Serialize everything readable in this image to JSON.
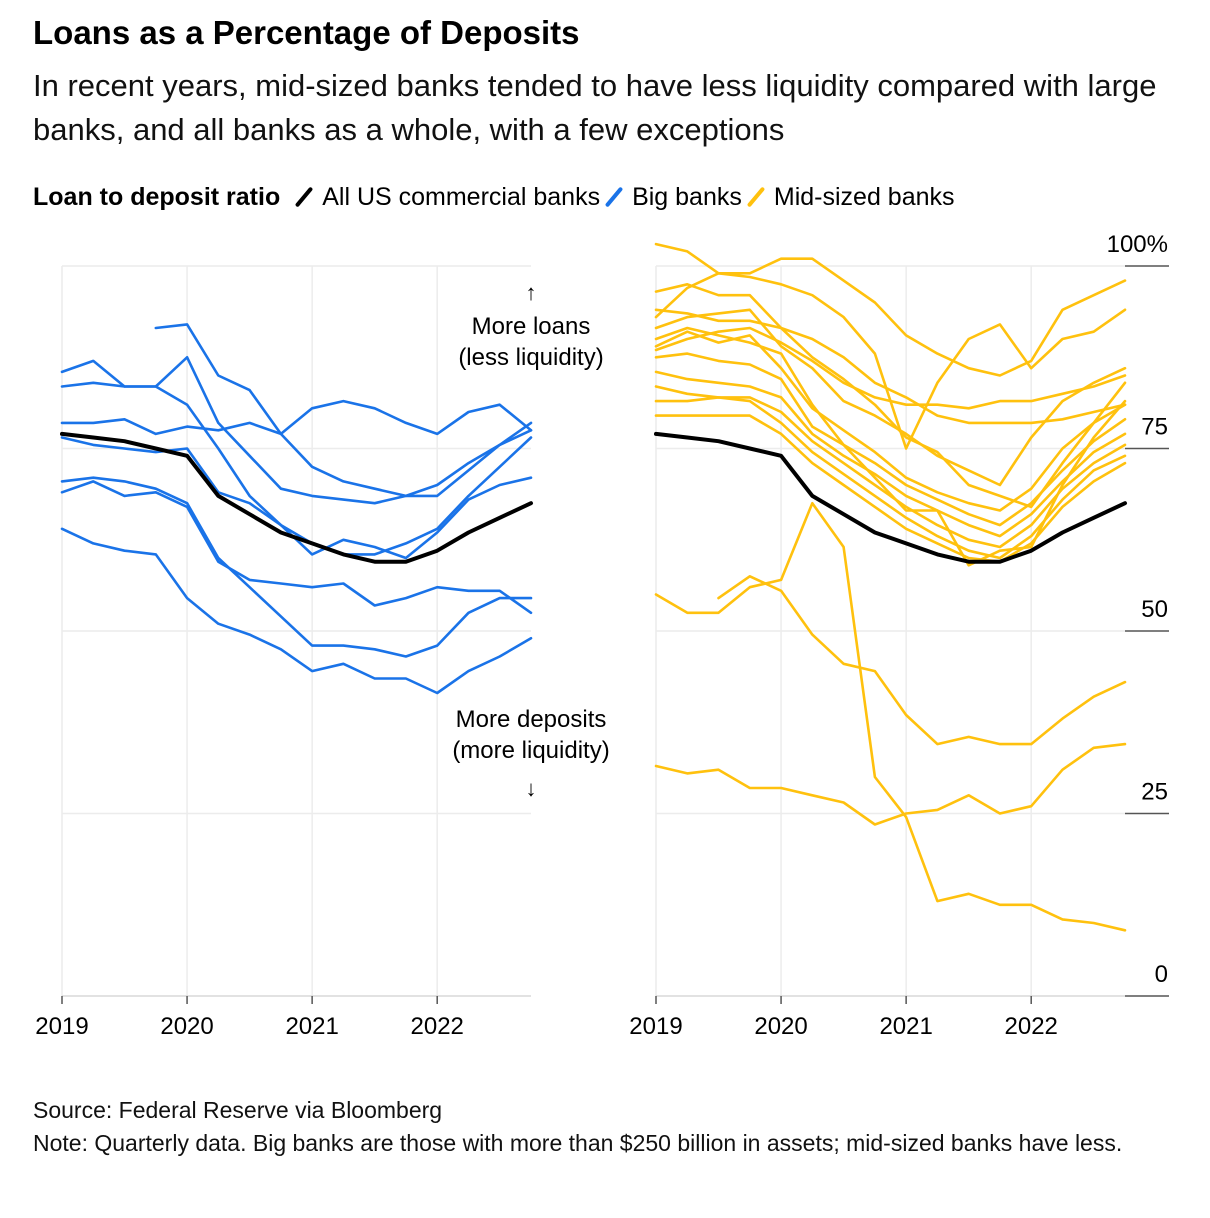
{
  "title": "Loans as a Percentage of Deposits",
  "subtitle": "In recent years, mid-sized banks tended to have less liquidity compared with large banks, and all banks as a whole, with a few exceptions",
  "legend": {
    "lead": "Loan to deposit ratio",
    "items": [
      {
        "label": "All US commercial banks",
        "color": "#000000"
      },
      {
        "label": "Big banks",
        "color": "#1a73e8"
      },
      {
        "label": "Mid-sized banks",
        "color": "#ffc10e"
      }
    ]
  },
  "annotations": {
    "up_arrow": "↑",
    "more_loans": "More loans",
    "less_liquidity": "(less liquidity)",
    "more_deposits": "More deposits",
    "more_liquidity": "(more liquidity)",
    "down_arrow": "↓"
  },
  "source": "Source: Federal Reserve via Bloomberg",
  "note": "Note: Quarterly data. Big banks are those with more than $250 billion in assets; mid-sized banks have less.",
  "chart_data": [
    {
      "type": "line",
      "title": "Big banks",
      "x": [
        2019.0,
        2019.25,
        2019.5,
        2019.75,
        2020.0,
        2020.25,
        2020.5,
        2020.75,
        2021.0,
        2021.25,
        2021.5,
        2021.75,
        2022.0,
        2022.25,
        2022.5,
        2022.75
      ],
      "xticks": [
        "2019",
        "2020",
        "2021",
        "2022"
      ],
      "ylim": [
        0,
        100
      ],
      "yticks": [
        "100%",
        "75",
        "50",
        "25",
        "0"
      ],
      "series": [
        {
          "name": "All US commercial banks",
          "color": "#000000",
          "values": [
            77,
            76.5,
            76,
            75,
            74,
            68.5,
            66,
            63.5,
            62,
            60.5,
            59.5,
            59.5,
            61,
            63.5,
            65.5,
            67.5
          ]
        },
        {
          "name": "Big bank 1",
          "color": "#1a73e8",
          "values": [
            null,
            null,
            null,
            91.5,
            92,
            85,
            83,
            77,
            72.5,
            70.5,
            69.5,
            68.5,
            68.5,
            72,
            75.5,
            78.5
          ]
        },
        {
          "name": "Big bank 2",
          "color": "#1a73e8",
          "values": [
            85.5,
            87,
            83.5,
            83.5,
            87.5,
            78.5,
            74,
            69.5,
            68.5,
            68,
            67.5,
            68.5,
            70,
            73,
            75.5,
            77.5
          ]
        },
        {
          "name": "Big bank 3",
          "color": "#1a73e8",
          "values": [
            83.5,
            84,
            83.5,
            83.5,
            81,
            75,
            68.5,
            64.5,
            60.5,
            62.5,
            61.5,
            60,
            63.5,
            68,
            70,
            71
          ]
        },
        {
          "name": "Big bank 4",
          "color": "#1a73e8",
          "values": [
            78.5,
            78.5,
            79,
            77,
            78,
            77.5,
            78.5,
            77,
            80.5,
            81.5,
            80.5,
            78.5,
            77,
            80,
            81,
            77.5
          ]
        },
        {
          "name": "Big bank 5",
          "color": "#1a73e8",
          "values": [
            76.5,
            75.5,
            75,
            74.5,
            75,
            69,
            67.5,
            64.5,
            62,
            60.5,
            60.5,
            62,
            64,
            68.5,
            72.5,
            76.5
          ]
        },
        {
          "name": "Big bank 6",
          "color": "#1a73e8",
          "values": [
            69,
            70.5,
            68.5,
            69,
            67,
            59.5,
            57,
            56.5,
            56,
            56.5,
            53.5,
            54.5,
            56,
            55.5,
            55.5,
            52.5
          ]
        },
        {
          "name": "Big bank 7",
          "color": "#1a73e8",
          "values": [
            70.5,
            71,
            70.5,
            69.5,
            67.5,
            60,
            56,
            52,
            48,
            48,
            47.5,
            46.5,
            48,
            52.5,
            54.5,
            54.5
          ]
        },
        {
          "name": "Big bank 8",
          "color": "#1a73e8",
          "values": [
            64,
            62,
            61,
            60.5,
            54.5,
            51,
            49.5,
            47.5,
            44.5,
            45.5,
            43.5,
            43.5,
            41.5,
            44.5,
            46.5,
            49
          ]
        }
      ]
    },
    {
      "type": "line",
      "title": "Mid-sized banks",
      "x": [
        2019.0,
        2019.25,
        2019.5,
        2019.75,
        2020.0,
        2020.25,
        2020.5,
        2020.75,
        2021.0,
        2021.25,
        2021.5,
        2021.75,
        2022.0,
        2022.25,
        2022.5,
        2022.75
      ],
      "xticks": [
        "2019",
        "2020",
        "2021",
        "2022"
      ],
      "ylim": [
        0,
        100
      ],
      "yticks": [
        "100%",
        "75",
        "50",
        "25",
        "0"
      ],
      "series": [
        {
          "name": "All US commercial banks",
          "color": "#000000",
          "values": [
            77,
            76.5,
            76,
            75,
            74,
            68.5,
            66,
            63.5,
            62,
            60.5,
            59.5,
            59.5,
            61,
            63.5,
            65.5,
            67.5
          ]
        },
        {
          "name": "Mid-sized bank 1",
          "color": "#ffc10e",
          "values": [
            103,
            102,
            99,
            99,
            101,
            101,
            98,
            95,
            90.5,
            88,
            86,
            85,
            87,
            94,
            96,
            98
          ]
        },
        {
          "name": "Mid-sized bank 2",
          "color": "#ffc10e",
          "values": [
            93,
            97,
            99,
            98.5,
            97.5,
            96,
            93,
            88,
            75,
            84,
            90,
            92,
            86,
            90,
            91,
            94
          ]
        },
        {
          "name": "Mid-sized bank 3",
          "color": "#ffc10e",
          "values": [
            91.5,
            93,
            93.5,
            94,
            89,
            86,
            81.5,
            79.5,
            77,
            74,
            72,
            70,
            76.5,
            81.5,
            84,
            86
          ]
        },
        {
          "name": "Mid-sized bank 4",
          "color": "#ffc10e",
          "values": [
            89,
            91,
            89.5,
            90.5,
            86,
            80.5,
            77.5,
            74.5,
            71,
            69,
            67.5,
            66.5,
            69.5,
            75,
            78.5,
            81
          ]
        },
        {
          "name": "Mid-sized bank 5",
          "color": "#ffc10e",
          "values": [
            87.5,
            88,
            87,
            86.5,
            84.5,
            78,
            75.5,
            73,
            70,
            68,
            66,
            64.5,
            67.5,
            72,
            76,
            79
          ]
        },
        {
          "name": "Mid-sized bank 6",
          "color": "#ffc10e",
          "values": [
            85.5,
            84.5,
            84,
            83.5,
            82,
            77,
            74,
            71.5,
            68.5,
            66.5,
            64.5,
            63,
            66,
            70.5,
            74.5,
            77
          ]
        },
        {
          "name": "Mid-sized bank 7",
          "color": "#ffc10e",
          "values": [
            83.5,
            82.5,
            82,
            82,
            80,
            76,
            73,
            70,
            67,
            64.5,
            62.5,
            61.5,
            64.5,
            69.5,
            73,
            75.5
          ]
        },
        {
          "name": "Mid-sized bank 8",
          "color": "#ffc10e",
          "values": [
            81.5,
            81.5,
            82,
            81.5,
            78.5,
            74.5,
            71.5,
            68.5,
            65.5,
            63,
            61,
            60,
            63,
            68,
            72,
            74
          ]
        },
        {
          "name": "Mid-sized bank 9",
          "color": "#ffc10e",
          "values": [
            79.5,
            79.5,
            79.5,
            79.5,
            77,
            73,
            70,
            67,
            64,
            62,
            60,
            59.5,
            62,
            67,
            70.5,
            73
          ]
        },
        {
          "name": "Mid-sized bank 10",
          "color": "#ffc10e",
          "values": [
            94,
            93.5,
            92.5,
            92.5,
            91.5,
            90,
            87.5,
            84,
            82,
            79.5,
            78.5,
            78.5,
            78.5,
            79,
            80,
            81
          ]
        },
        {
          "name": "Mid-sized bank 11",
          "color": "#ffc10e",
          "values": [
            96.5,
            97.5,
            96,
            96,
            91.5,
            87.5,
            84.5,
            81,
            76.5,
            74.5,
            70,
            68.5,
            67,
            73,
            78.5,
            84
          ]
        },
        {
          "name": "Mid-sized bank 12",
          "color": "#ffc10e",
          "values": [
            88.5,
            90,
            91,
            91.5,
            89.5,
            87,
            84,
            82,
            81,
            81,
            80.5,
            81.5,
            81.5,
            82.5,
            83.5,
            85
          ]
        },
        {
          "name": "Mid-sized bank 13",
          "color": "#ffc10e",
          "values": [
            90,
            91.5,
            90.5,
            89.5,
            88,
            81,
            75.5,
            71,
            66.5,
            66.5,
            59,
            61,
            61.5,
            70,
            76.5,
            81.5
          ]
        },
        {
          "name": "Mid-sized bank 14",
          "color": "#ffc10e",
          "values": [
            55,
            52.5,
            52.5,
            56,
            57,
            67.5,
            61.5,
            30,
            24.5,
            13,
            14,
            12.5,
            12.5,
            10.5,
            10,
            9
          ]
        },
        {
          "name": "Mid-sized bank 15",
          "color": "#ffc10e",
          "values": [
            null,
            null,
            54.5,
            57.5,
            55.5,
            49.5,
            45.5,
            44.5,
            38.5,
            34.5,
            35.5,
            34.5,
            34.5,
            38,
            41,
            43
          ]
        },
        {
          "name": "Mid-sized bank 16",
          "color": "#ffc10e",
          "values": [
            31.5,
            30.5,
            31,
            28.5,
            28.5,
            27.5,
            26.5,
            23.5,
            25,
            25.5,
            27.5,
            25,
            26,
            31,
            34,
            34.5
          ]
        }
      ]
    }
  ]
}
